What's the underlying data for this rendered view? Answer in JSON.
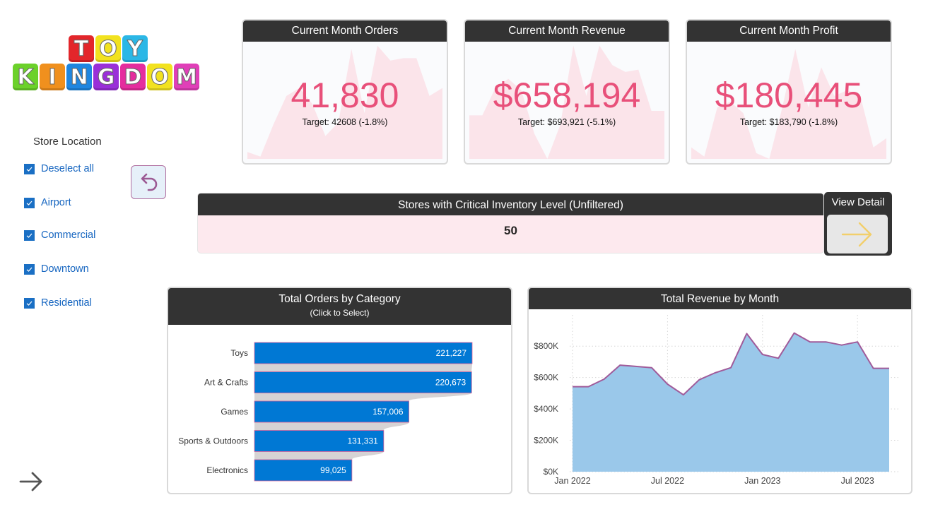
{
  "logo": {
    "top_letters": [
      {
        "char": "T",
        "color": "#e3262b"
      },
      {
        "char": "O",
        "color": "#f2e21f"
      },
      {
        "char": "Y",
        "color": "#2bb7e6"
      }
    ],
    "bottom_letters": [
      {
        "char": "K",
        "color": "#6cd12a"
      },
      {
        "char": "I",
        "color": "#f0901e"
      },
      {
        "char": "N",
        "color": "#1f86e0"
      },
      {
        "char": "G",
        "color": "#9a2fd8"
      },
      {
        "char": "D",
        "color": "#e52d9e"
      },
      {
        "char": "O",
        "color": "#f2e21f"
      },
      {
        "char": "M",
        "color": "#e03fb8"
      }
    ],
    "alt": "TOY KINGDOM"
  },
  "slicer": {
    "title": "Store Location",
    "items": [
      {
        "label": "Deselect all",
        "checked": true
      },
      {
        "label": "Airport",
        "checked": true
      },
      {
        "label": "Commercial",
        "checked": true
      },
      {
        "label": "Downtown",
        "checked": true
      },
      {
        "label": "Residential",
        "checked": true
      }
    ]
  },
  "buttons": {
    "reset_icon": "undo-arrow-icon",
    "nav_icon": "arrow-right-icon",
    "view_detail_label": "View Detail",
    "view_detail_icon": "arrow-right-icon"
  },
  "kpis": [
    {
      "title": "Current Month Orders",
      "value": "41,830",
      "target": "Target: 42608 (-1.8%)"
    },
    {
      "title": "Current Month Revenue",
      "value": "$658,194",
      "target": "Target: $693,921 (-5.1%)"
    },
    {
      "title": "Current Month Profit",
      "value": "$180,445",
      "target": "Target: $183,790 (-1.8%)"
    }
  ],
  "critical": {
    "title": "Stores with Critical Inventory Level (Unfiltered)",
    "value": "50"
  },
  "colors": {
    "header_bg": "#333333",
    "kpi_value": "#e8507a",
    "bar_fill": "#0078d4",
    "area_fill": "#9ac8ea",
    "area_line": "#a05b9a",
    "sparkline_fill": "#fbe4ea"
  },
  "chart_data": [
    {
      "type": "bar",
      "title": "Total Orders by Category",
      "subtitle": "(Click to Select)",
      "orientation": "horizontal",
      "categories": [
        "Toys",
        "Art & Crafts",
        "Games",
        "Sports & Outdoors",
        "Electronics"
      ],
      "values": [
        221227,
        220673,
        157006,
        131331,
        99025
      ],
      "labels": [
        "221,227",
        "220,673",
        "157,006",
        "131,331",
        "99,025"
      ],
      "xlim": [
        0,
        221227
      ],
      "grid": false
    },
    {
      "type": "area",
      "title": "Total Revenue by Month",
      "x": [
        "Jan 2022",
        "Feb 2022",
        "Mar 2022",
        "Apr 2022",
        "May 2022",
        "Jun 2022",
        "Jul 2022",
        "Aug 2022",
        "Sep 2022",
        "Oct 2022",
        "Nov 2022",
        "Dec 2022",
        "Jan 2023",
        "Feb 2023",
        "Mar 2023",
        "Apr 2023",
        "May 2023",
        "Jun 2023",
        "Jul 2023",
        "Aug 2023",
        "Sep 2023"
      ],
      "values": [
        542000,
        542000,
        590000,
        679000,
        671000,
        663000,
        558000,
        490000,
        586000,
        630000,
        663000,
        880000,
        747000,
        723000,
        884000,
        827000,
        827000,
        807000,
        827000,
        659000,
        659000
      ],
      "xticks": [
        {
          "index": 0,
          "label": "Jan 2022"
        },
        {
          "index": 6,
          "label": "Jul 2022"
        },
        {
          "index": 12,
          "label": "Jan 2023"
        },
        {
          "index": 18,
          "label": "Jul 2023"
        }
      ],
      "yticks": [
        {
          "value": 0,
          "label": "$0K"
        },
        {
          "value": 200000,
          "label": "$200K"
        },
        {
          "value": 400000,
          "label": "$400K"
        },
        {
          "value": 600000,
          "label": "$600K"
        },
        {
          "value": 800000,
          "label": "$800K"
        }
      ],
      "ylim": [
        0,
        900000
      ],
      "grid": true,
      "xlabel": "",
      "ylabel": ""
    }
  ],
  "sparklines": [
    [
      0.06,
      0.02,
      0.3,
      0.55,
      0.62,
      0.48,
      0.2,
      0.32,
      0.96,
      0.4,
      0.99,
      0.86,
      0.88,
      0.88,
      0.55,
      0.62
    ],
    [
      0.38,
      0.38,
      0.62,
      0.7,
      0.6,
      0.22,
      0.0,
      0.3,
      0.99,
      0.55,
      0.99,
      0.82,
      0.76,
      0.78,
      0.42,
      0.42
    ],
    [
      0.1,
      0.02,
      0.45,
      0.5,
      0.4,
      0.05,
      0.0,
      0.45,
      0.96,
      0.45,
      0.8,
      0.55,
      0.6,
      0.55,
      0.1,
      0.18
    ]
  ]
}
